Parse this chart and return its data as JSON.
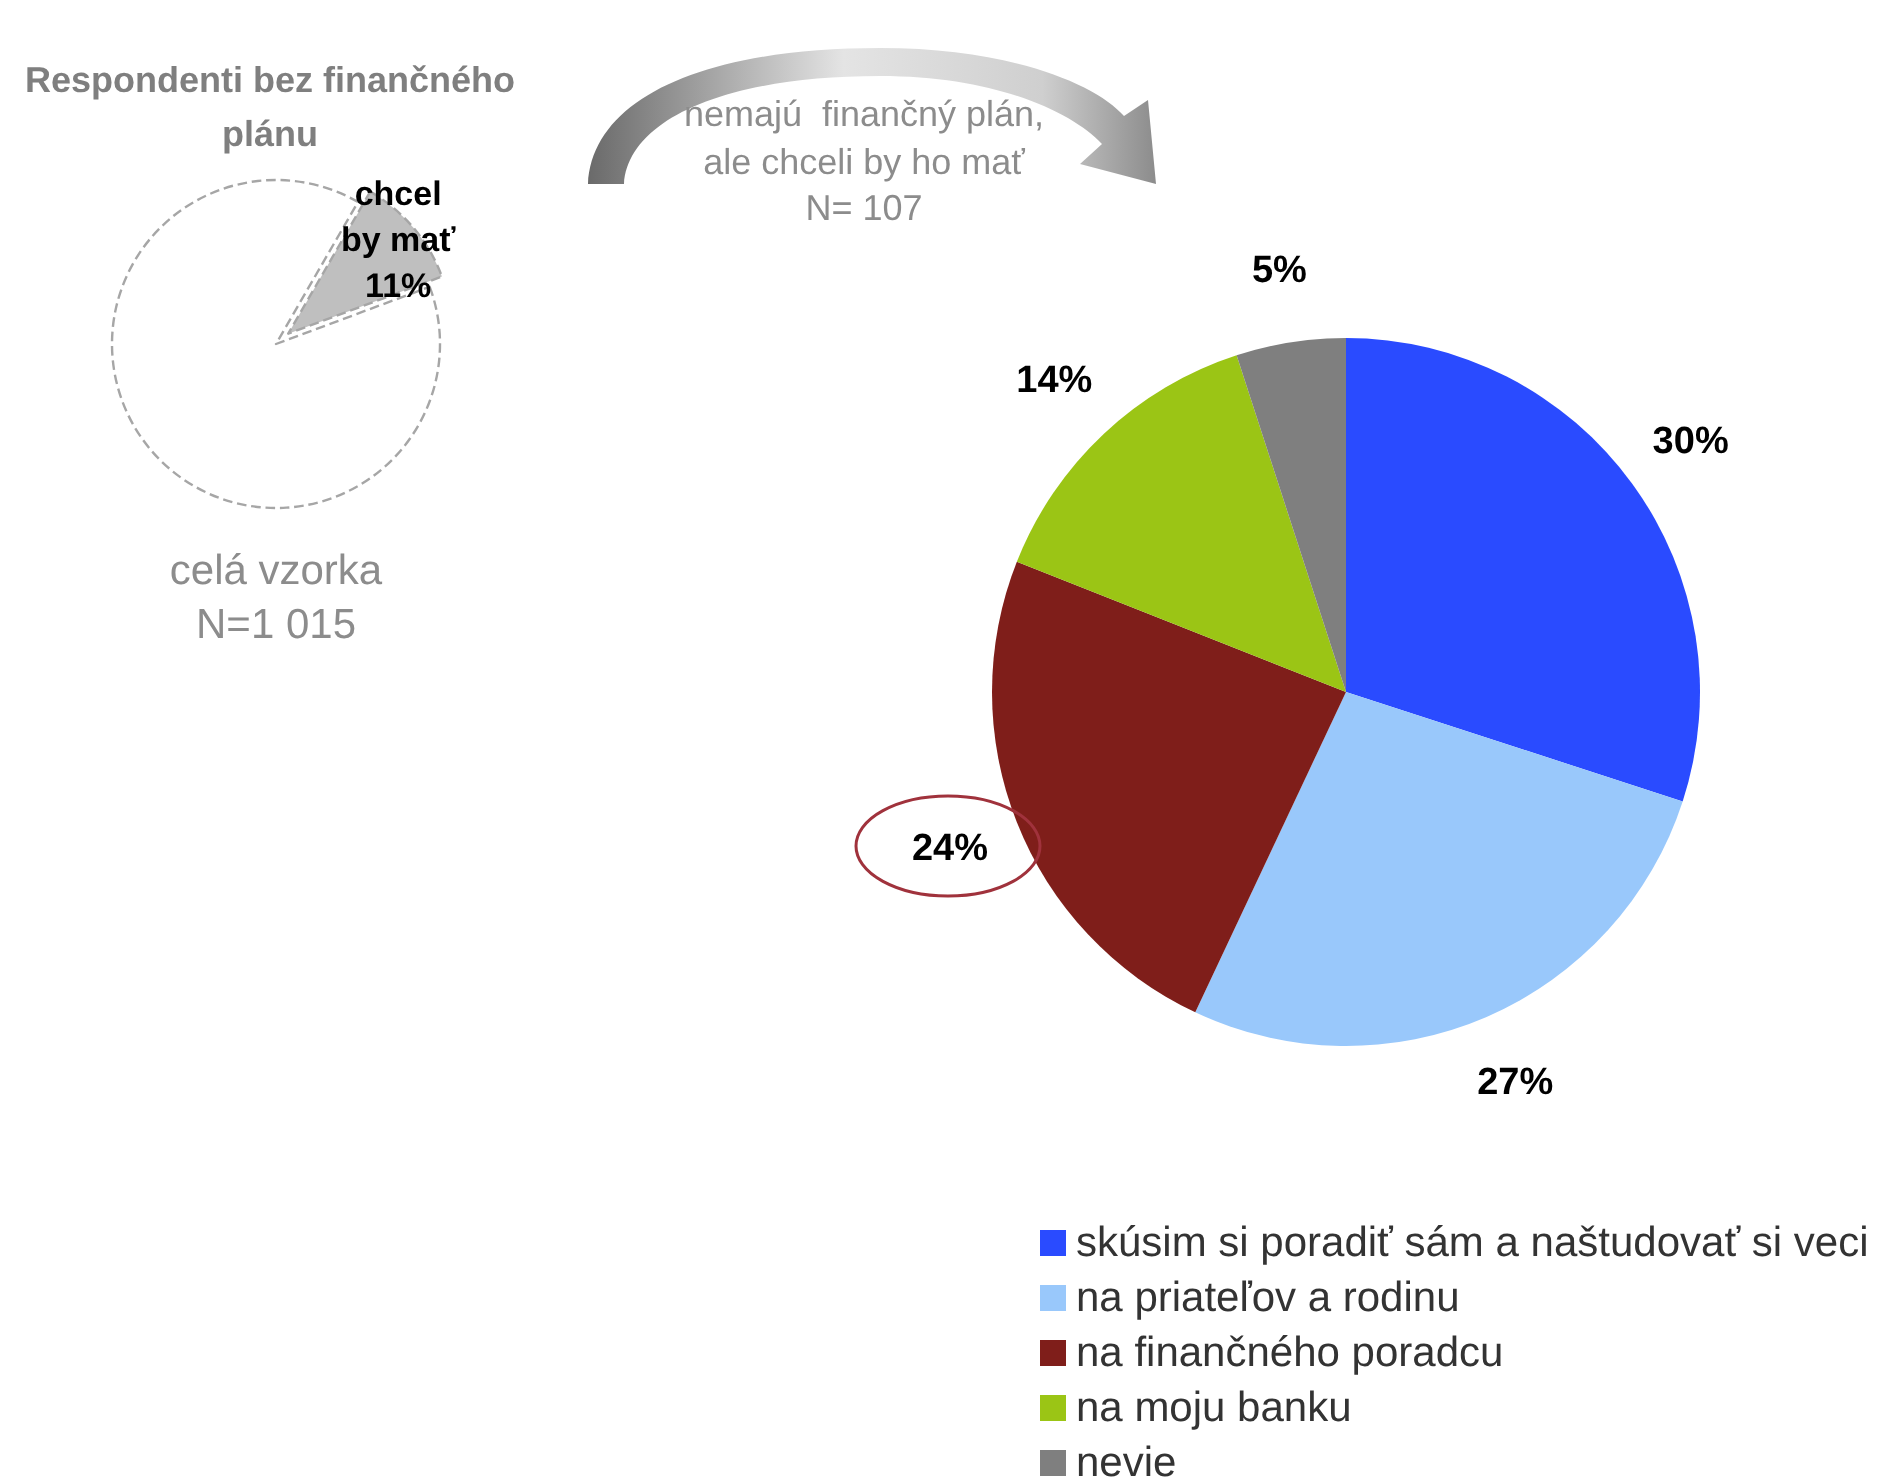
{
  "chart_data": [
    {
      "type": "pie",
      "title": "Respondenti bez finančného plánu",
      "categories": [
        "chcel by mať",
        null
      ],
      "values": [
        11,
        89
      ],
      "colors": [
        "#bfbfbf",
        "#ffffff"
      ],
      "value_labels": [
        "11%",
        null
      ],
      "annotations": [
        "celá vzorka",
        "N=1 015"
      ]
    },
    {
      "type": "pie",
      "title": "nemajú  finančný plán, ale chceli by ho mať",
      "subtitle": "N= 107",
      "categories": [
        "skúsim si poradiť sám a naštudovať si veci",
        "na priateľov a rodinu",
        "na finančného poradcu",
        "na moju banku",
        "nevie"
      ],
      "values": [
        30,
        27,
        24,
        14,
        5
      ],
      "colors": [
        "#2a4bff",
        "#99c8fb",
        "#7f1e1a",
        "#9bc515",
        "#7f7f7f"
      ],
      "value_labels": [
        "30%",
        "27%",
        "24%",
        "14%",
        "5%"
      ],
      "legend": "bottom"
    }
  ]
}
